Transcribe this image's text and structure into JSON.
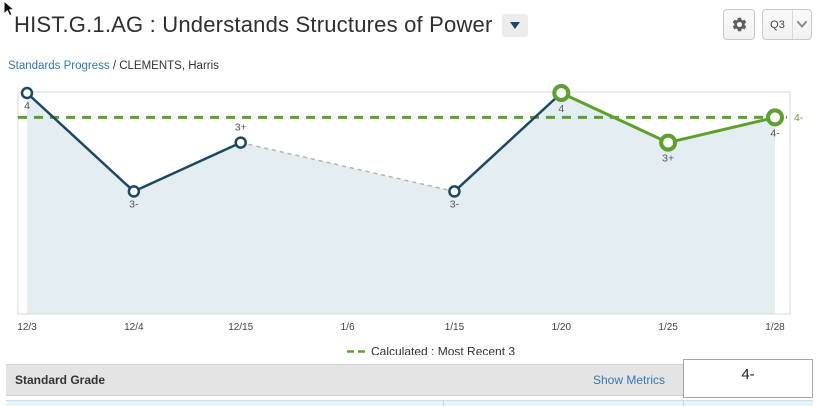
{
  "header": {
    "title": "HIST.G.1.AG : Understands Structures of Power",
    "quarter": "Q3"
  },
  "breadcrumb": {
    "link": "Standards Progress",
    "separator": " / ",
    "student": "CLEMENTS, Harris"
  },
  "chart_data": {
    "type": "line",
    "x_labels": [
      "12/3",
      "12/4",
      "12/15",
      "1/6",
      "1/15",
      "1/20",
      "1/25",
      "1/28"
    ],
    "points": [
      {
        "date": "12/3",
        "grade": "4",
        "value": 4.0,
        "recent": false,
        "label_placement": "below"
      },
      {
        "date": "12/4",
        "grade": "3-",
        "value": 2.67,
        "recent": false,
        "label_placement": "below"
      },
      {
        "date": "12/15",
        "grade": "3+",
        "value": 3.33,
        "recent": false,
        "label_placement": "above"
      },
      {
        "date": "1/6",
        "grade": null,
        "value": null
      },
      {
        "date": "1/15",
        "grade": "3-",
        "value": 2.67,
        "recent": false,
        "label_placement": "below"
      },
      {
        "date": "1/20",
        "grade": "4",
        "value": 4.0,
        "recent": true,
        "label_placement": "below"
      },
      {
        "date": "1/25",
        "grade": "3+",
        "value": 3.33,
        "recent": true,
        "label_placement": "below"
      },
      {
        "date": "1/28",
        "grade": "4-",
        "value": 3.67,
        "recent": true,
        "label_placement": "below"
      }
    ],
    "calculated_line": {
      "grade": "4-",
      "value": 3.67
    },
    "legend": {
      "label": "Calculated : Most Recent 3",
      "position": "bottom-center"
    },
    "ylim": [
      1,
      4.05
    ],
    "grid": false,
    "colors": {
      "line": "#1b4862",
      "recent_line": "#5da02f",
      "gap_connector": "#b0b0b0",
      "area_fill": "#e4edf2",
      "calculated": "#5da02f",
      "point_label": "#555555",
      "axis_label": "#444444"
    }
  },
  "footer": {
    "row_label": "Standard Grade",
    "metrics_link": "Show Metrics",
    "grade_value": "4-"
  }
}
